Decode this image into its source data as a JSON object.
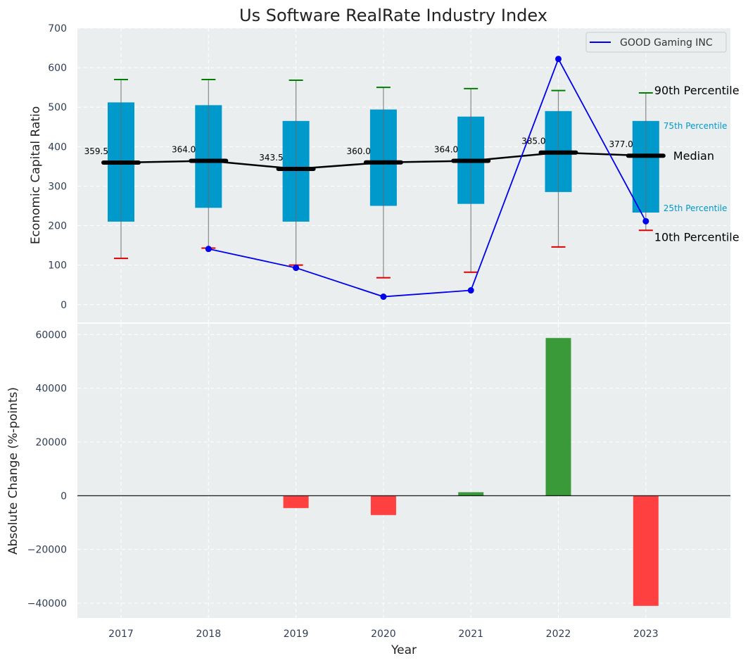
{
  "chart_data": {
    "title": "Us Software RealRate Industry Index",
    "xlabel": "Year",
    "x_ticks": [
      "2017",
      "2018",
      "2019",
      "2020",
      "2021",
      "2022",
      "2023"
    ],
    "colors": {
      "box": "#0099cc",
      "median_line": "#000000",
      "company_line": "#0000ee",
      "p90_cap": "#008000",
      "p10_cap": "#dd0000",
      "bar_positive": "#3a9a3a",
      "bar_negative": "#ff4040",
      "panel_bg": "#eaeeef"
    },
    "top_panel": {
      "type": "box",
      "ylabel": "Economic Capital Ratio",
      "ylim": [
        -45,
        700
      ],
      "y_ticks": [
        0,
        100,
        200,
        300,
        400,
        500,
        600,
        700
      ],
      "grid": true,
      "legend_position": "top-right",
      "years": [
        "2017",
        "2018",
        "2019",
        "2020",
        "2021",
        "2022",
        "2023"
      ],
      "p10": [
        117,
        143,
        100,
        68,
        82,
        146,
        188
      ],
      "p25": [
        210,
        245,
        210,
        250,
        255,
        285,
        233
      ],
      "median": [
        359.5,
        364.0,
        343.5,
        360.0,
        364.0,
        385.0,
        377.0
      ],
      "median_labels": [
        "359.5",
        "364.0",
        "343.5",
        "360.0",
        "364.0",
        "385.0",
        "377.0"
      ],
      "p75": [
        512,
        505,
        465,
        494,
        476,
        490,
        465
      ],
      "p90": [
        570,
        570,
        568,
        550,
        547,
        542,
        536
      ],
      "company": {
        "name": "GOOD Gaming INC",
        "years": [
          "2018",
          "2019",
          "2020",
          "2021",
          "2022",
          "2023"
        ],
        "values": [
          141,
          93,
          20,
          36,
          622,
          211
        ]
      },
      "annotations": {
        "p90": "90th Percentile",
        "p75": "75th Percentile",
        "median": "Median",
        "p25": "25th Percentile",
        "p10": "10th Percentile"
      }
    },
    "bottom_panel": {
      "type": "bar",
      "ylabel": "Absolute Change (%-points)",
      "ylim": [
        -45500,
        64000
      ],
      "y_ticks": [
        -40000,
        -20000,
        0,
        20000,
        40000,
        60000
      ],
      "y_tick_labels": [
        "−40000",
        "−20000",
        "0",
        "20000",
        "40000",
        "60000"
      ],
      "grid": true,
      "categories": [
        "2017",
        "2018",
        "2019",
        "2020",
        "2021",
        "2022",
        "2023"
      ],
      "values": [
        0,
        0,
        -4600,
        -7200,
        1300,
        58700,
        -41000
      ]
    }
  }
}
